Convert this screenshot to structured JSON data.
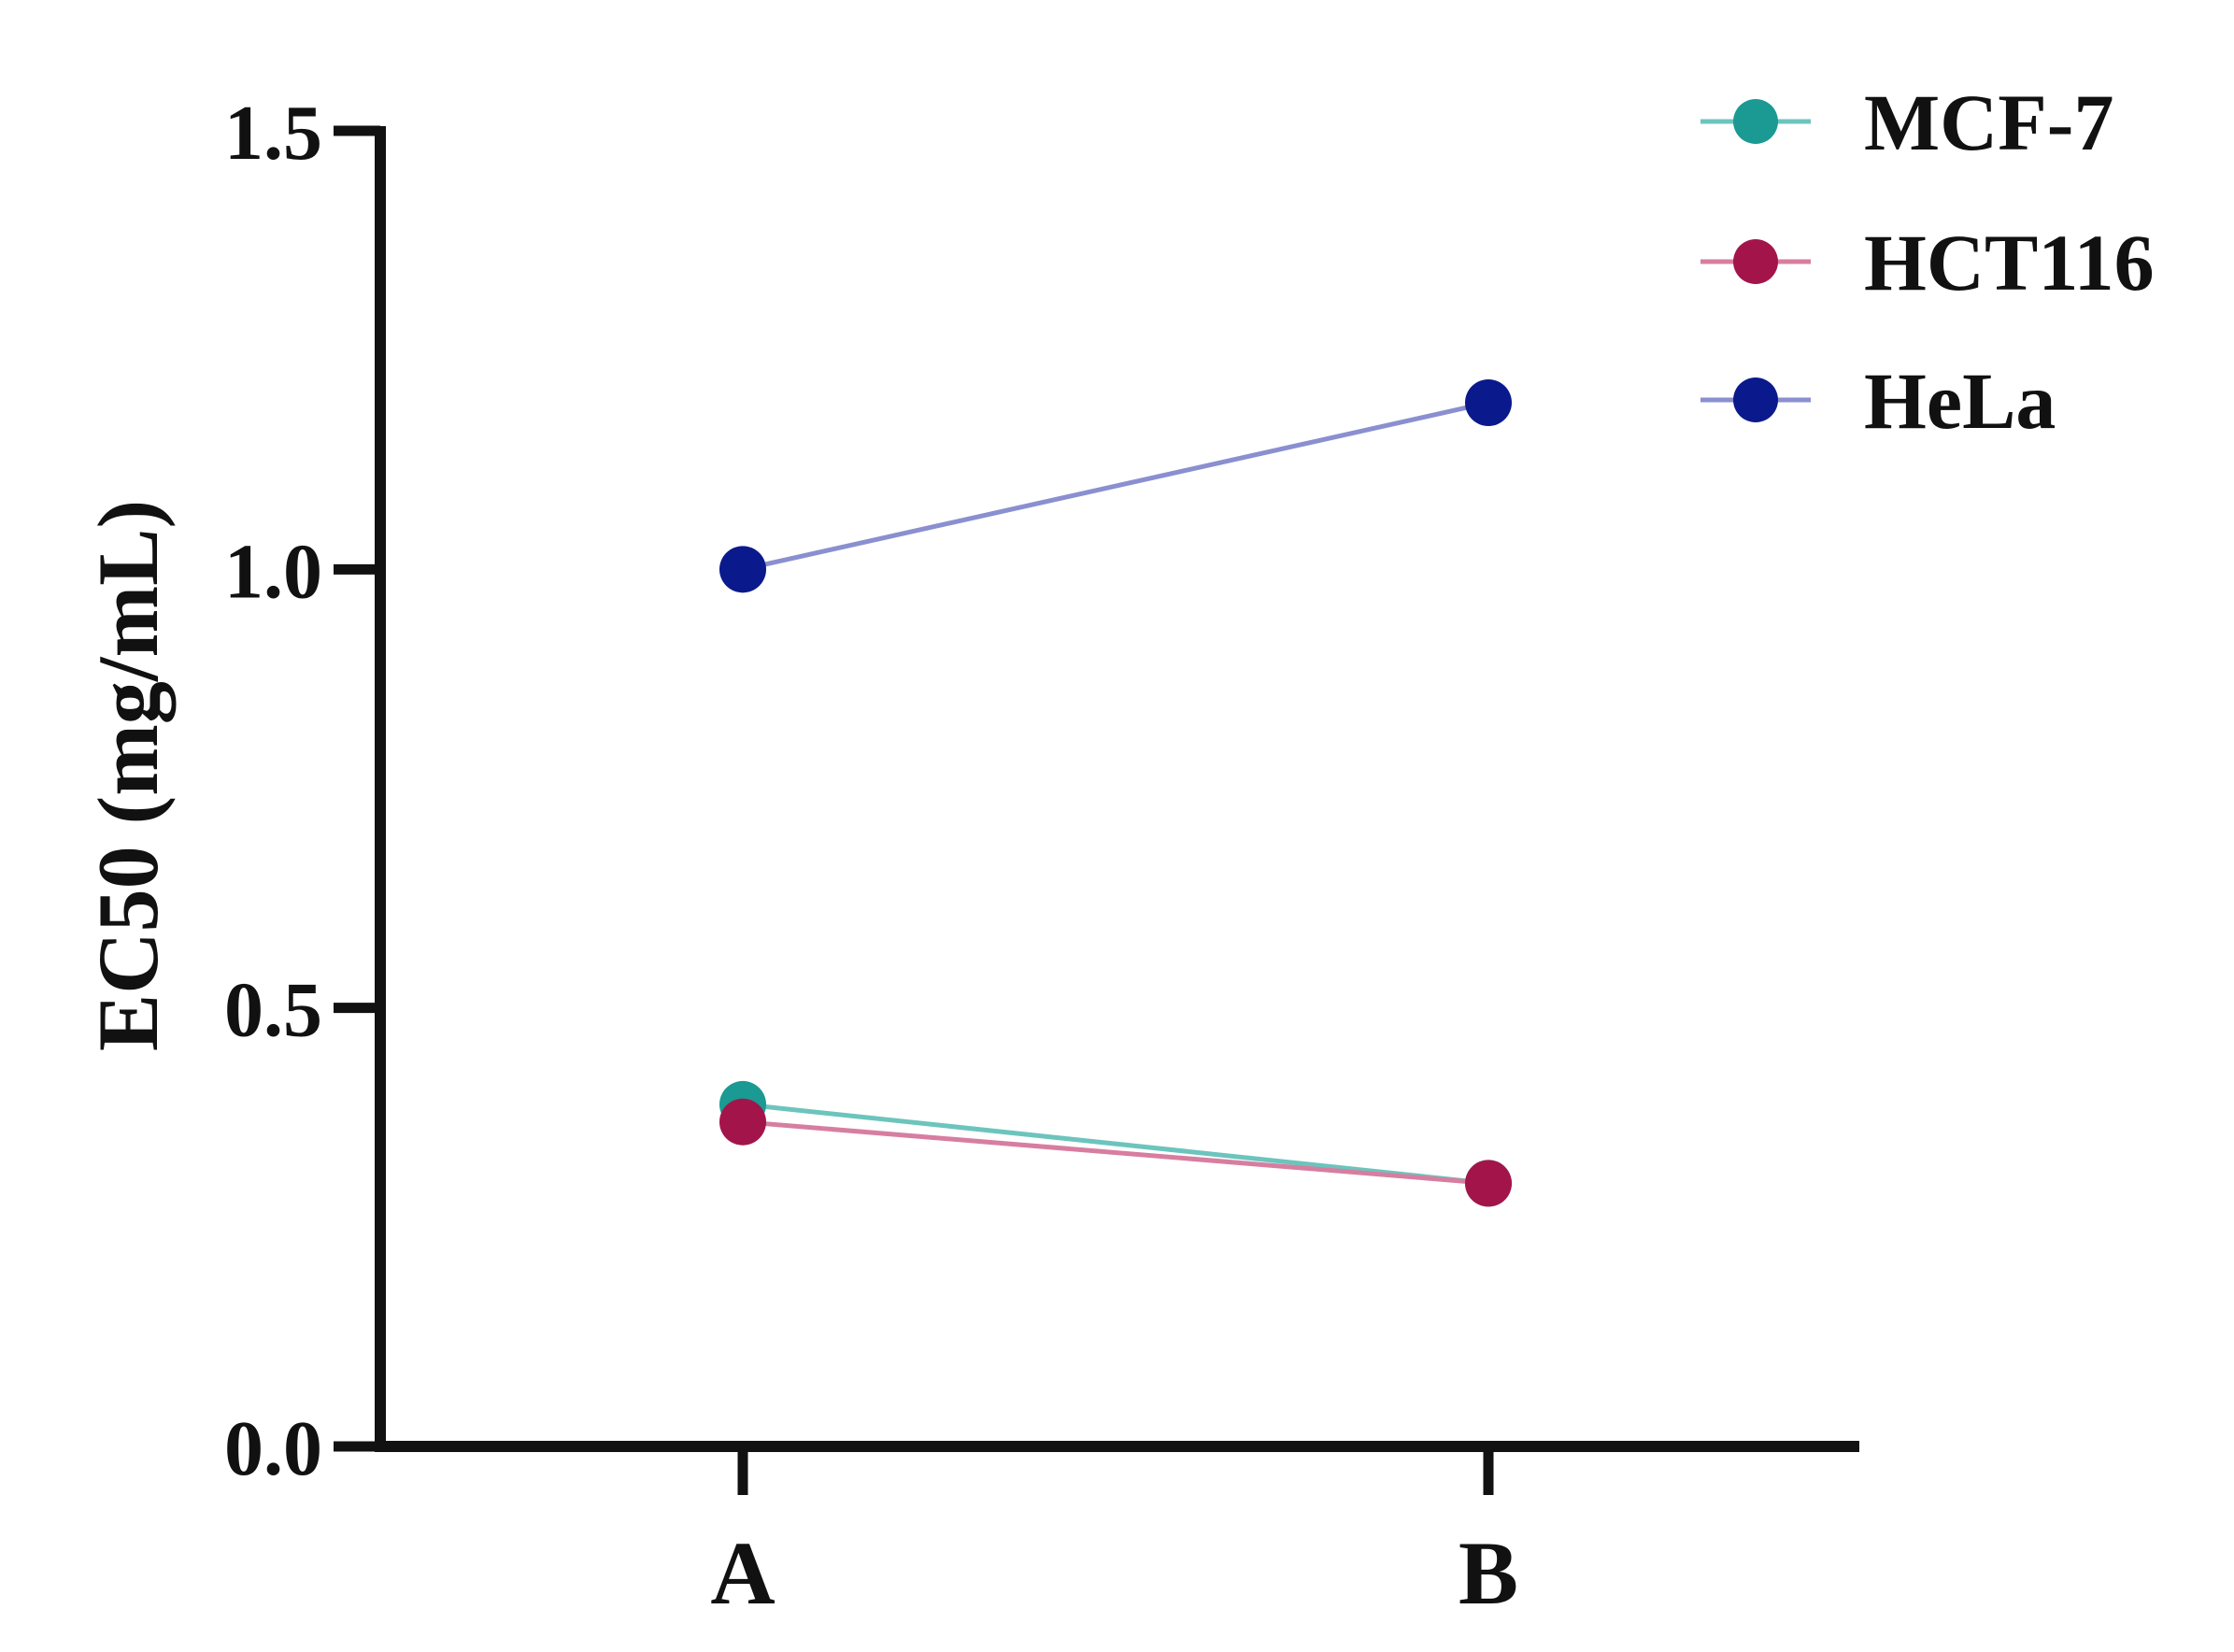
{
  "chart_data": {
    "type": "line",
    "title": "",
    "xlabel": "",
    "ylabel": "EC50 (mg/mL)",
    "categories": [
      "A",
      "B"
    ],
    "ylim": [
      0,
      1.5
    ],
    "yticks": [
      "0.0",
      "0.5",
      "1.0",
      "1.5"
    ],
    "ytick_values": [
      0,
      0.5,
      1.0,
      1.5
    ],
    "grid": false,
    "legend_position": "top-right",
    "series": [
      {
        "name": "MCF-7",
        "values": [
          0.39,
          0.3
        ],
        "color": "#1a9a92",
        "line_color": "#6cc4bd"
      },
      {
        "name": "HCT116",
        "values": [
          0.37,
          0.3
        ],
        "color": "#a3154a",
        "line_color": "#d77ea0"
      },
      {
        "name": "HeLa",
        "values": [
          1.0,
          1.19
        ],
        "color": "#0a1a8c",
        "line_color": "#8a8fd0"
      }
    ]
  }
}
